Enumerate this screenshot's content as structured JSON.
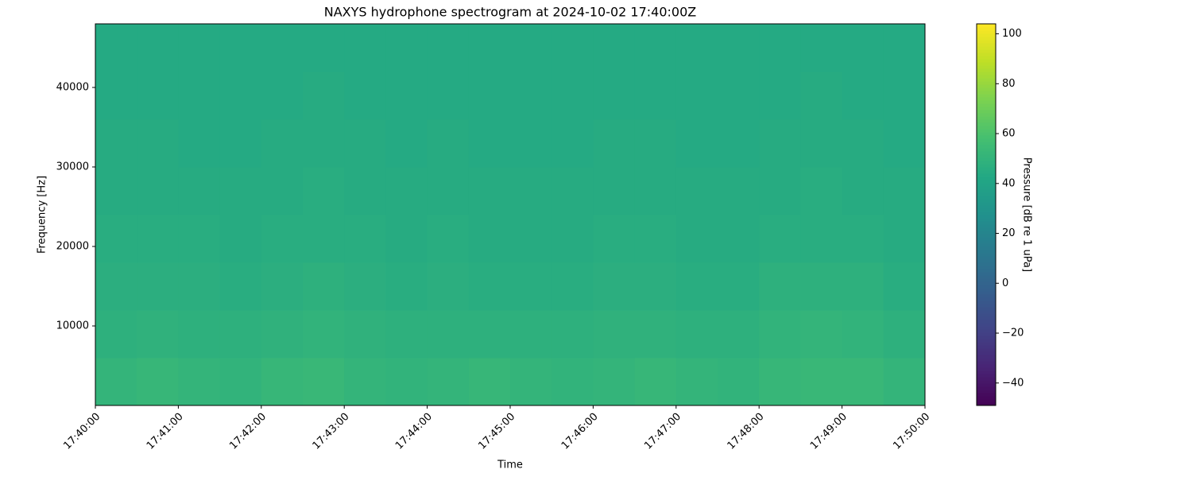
{
  "chart_data": {
    "type": "spectrogram",
    "title": "NAXYS hydrophone spectrogram at 2024-10-02 17:40:00Z",
    "xlabel": "Time",
    "ylabel": "Frequency [Hz]",
    "xticks": [
      "17:40:00",
      "17:41:00",
      "17:42:00",
      "17:43:00",
      "17:44:00",
      "17:45:00",
      "17:46:00",
      "17:47:00",
      "17:48:00",
      "17:49:00",
      "17:50:00"
    ],
    "ylim": [
      0,
      48000
    ],
    "yticks": [
      10000,
      20000,
      30000,
      40000
    ],
    "colormap": "viridis",
    "clim": [
      -49,
      104
    ],
    "cticks": [
      {
        "value": -40,
        "label": "−40"
      },
      {
        "value": -20,
        "label": "−20"
      },
      0,
      20,
      40,
      60,
      80,
      100
    ],
    "clabel": "Pressure [dB re 1 uPa]",
    "z": [
      [
        51,
        52,
        51,
        50,
        52,
        53,
        51,
        50,
        51,
        52,
        51,
        50,
        51,
        52,
        51,
        50,
        52,
        53,
        53,
        51
      ],
      [
        48,
        49,
        48,
        48,
        49,
        50,
        49,
        48,
        48,
        48,
        48,
        48,
        49,
        49,
        48,
        48,
        50,
        51,
        50,
        48
      ],
      [
        47,
        47,
        47,
        46,
        47,
        48,
        47,
        46,
        47,
        46,
        46,
        46,
        47,
        47,
        46,
        46,
        48,
        48,
        48,
        46
      ],
      [
        46,
        46,
        46,
        45,
        46,
        46,
        46,
        45,
        46,
        45,
        45,
        45,
        46,
        46,
        45,
        45,
        46,
        46,
        46,
        45
      ],
      [
        45,
        45,
        45,
        45,
        45,
        46,
        45,
        45,
        45,
        45,
        45,
        45,
        45,
        45,
        45,
        45,
        45,
        46,
        45,
        45
      ],
      [
        45,
        45,
        44,
        44,
        45,
        45,
        45,
        44,
        45,
        44,
        44,
        44,
        45,
        45,
        44,
        44,
        45,
        45,
        45,
        44
      ],
      [
        44,
        44,
        44,
        44,
        44,
        45,
        44,
        44,
        44,
        44,
        44,
        44,
        44,
        44,
        44,
        44,
        44,
        45,
        44,
        44
      ],
      [
        44,
        44,
        44,
        44,
        44,
        44,
        44,
        44,
        44,
        44,
        44,
        44,
        44,
        44,
        44,
        44,
        44,
        44,
        44,
        44
      ]
    ]
  }
}
